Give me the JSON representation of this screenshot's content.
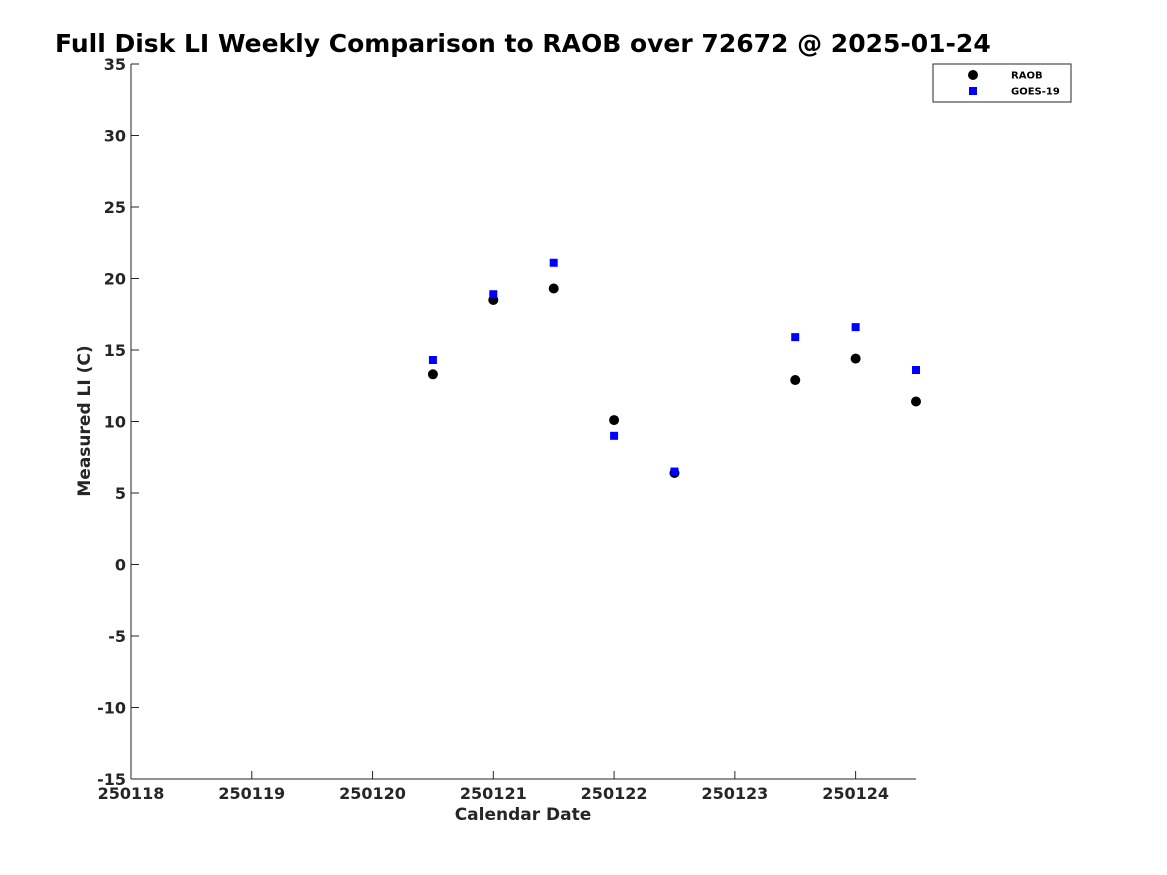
{
  "chart_data": {
    "type": "scatter",
    "title": "Full Disk LI Weekly Comparison to RAOB over 72672 @ 2025-01-24",
    "xlabel": "Calendar Date",
    "ylabel": "Measured LI (C)",
    "xlim": [
      250118,
      250124.5
    ],
    "ylim": [
      -15,
      35
    ],
    "x_ticks": [
      250118,
      250119,
      250120,
      250121,
      250122,
      250123,
      250124
    ],
    "x_tick_labels": [
      "250118",
      "250119",
      "250120",
      "250121",
      "250122",
      "250123",
      "250124"
    ],
    "y_ticks": [
      -15,
      -10,
      -5,
      0,
      5,
      10,
      15,
      20,
      25,
      30,
      35
    ],
    "y_tick_labels": [
      "-15",
      "-10",
      "-5",
      "0",
      "5",
      "10",
      "15",
      "20",
      "25",
      "30",
      "35"
    ],
    "grid": false,
    "legend_position": "top-right",
    "series": [
      {
        "name": "RAOB",
        "marker": "circle",
        "color": "#000000",
        "x": [
          250120.5,
          250121,
          250121.5,
          250122,
          250122.5,
          250123.5,
          250124,
          250124.5
        ],
        "y": [
          13.3,
          18.5,
          19.3,
          10.1,
          6.4,
          12.9,
          14.4,
          11.4
        ]
      },
      {
        "name": "GOES-19",
        "marker": "square",
        "color": "#0000ff",
        "x": [
          250120.5,
          250121,
          250121.5,
          250122,
          250122.5,
          250123.5,
          250124,
          250124.5
        ],
        "y": [
          14.3,
          18.9,
          21.1,
          9.0,
          6.5,
          15.9,
          16.6,
          13.6
        ]
      }
    ]
  }
}
